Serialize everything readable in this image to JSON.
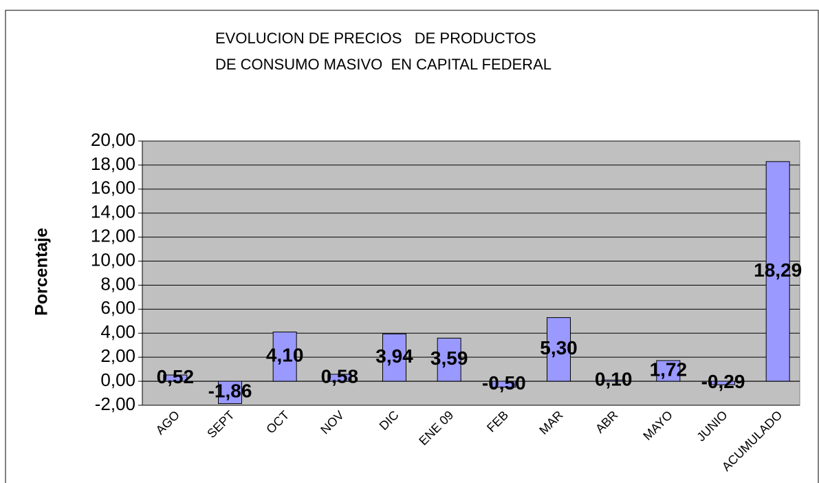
{
  "chart_data": {
    "type": "bar",
    "title": [
      "EVOLUCION DE PRECIOS   DE PRODUCTOS",
      "DE CONSUMO MASIVO  EN CAPITAL FEDERAL"
    ],
    "y_label": "Porcentaje",
    "categories": [
      "AGO",
      "SEPT",
      "OCT",
      "NOV",
      "DIC",
      "ENE 09",
      "FEB",
      "MAR",
      "ABR",
      "MAYO",
      "JUNIO",
      "ACUMULADO"
    ],
    "values": [
      0.52,
      -1.86,
      4.1,
      0.58,
      3.94,
      3.59,
      -0.5,
      5.3,
      0.1,
      1.72,
      -0.29,
      18.29
    ],
    "value_labels": [
      "0,52",
      "-1,86",
      "4,10",
      "0,58",
      "3,94",
      "3,59",
      "-0,50",
      "5,30",
      "0,10",
      "1,72",
      "-0,29",
      "18,29"
    ],
    "color": "#9999ff",
    "ylim": [
      -2,
      20
    ],
    "yticks": [
      {
        "value": -2,
        "label": "-2,00"
      },
      {
        "value": 0,
        "label": "0,00"
      },
      {
        "value": 2,
        "label": "2,00"
      },
      {
        "value": 4,
        "label": "4,00"
      },
      {
        "value": 6,
        "label": "6,00"
      },
      {
        "value": 8,
        "label": "8,00"
      },
      {
        "value": 10,
        "label": "10,00"
      },
      {
        "value": 12,
        "label": "12,00"
      },
      {
        "value": 14,
        "label": "14,00"
      },
      {
        "value": 16,
        "label": "16,00"
      },
      {
        "value": 18,
        "label": "18,00"
      },
      {
        "value": 20,
        "label": "20,00"
      }
    ],
    "grid": true
  }
}
